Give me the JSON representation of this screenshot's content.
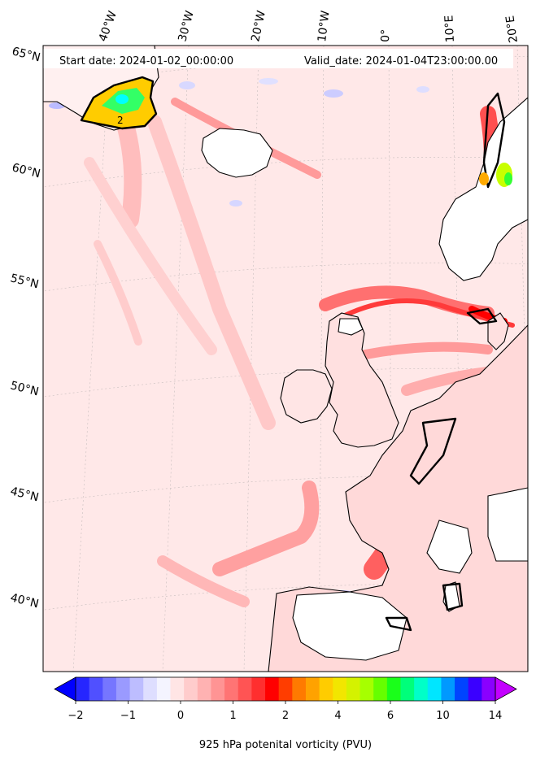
{
  "header": {
    "start_date": "Start date: 2024-01-02_00:00:00",
    "valid_date": "Valid_date: 2024-01-04T23:00:00.00"
  },
  "lon_labels": [
    "40°W",
    "30°W",
    "20°W",
    "10°W",
    "0°",
    "10°E",
    "20°E"
  ],
  "lat_labels": [
    "65°N",
    "60°N",
    "55°N",
    "50°N",
    "45°N",
    "40°N"
  ],
  "contour_label": "2",
  "colorbar": {
    "title": "925 hPa potenital vorticity (PVU)",
    "ticks": [
      "−2",
      "−1",
      "0",
      "1",
      "2",
      "4",
      "6",
      "10",
      "14"
    ],
    "colors": [
      "#0000ff",
      "#2626ff",
      "#5050ff",
      "#7676ff",
      "#9a9aff",
      "#bdbdff",
      "#dedeff",
      "#f4f4ff",
      "#ffe5e5",
      "#ffcccc",
      "#ffb2b2",
      "#ff9494",
      "#ff7474",
      "#ff5454",
      "#ff2f2f",
      "#ff0000",
      "#ff3d00",
      "#ff7a00",
      "#ffa200",
      "#ffcc00",
      "#f2e600",
      "#d4f200",
      "#a6ff00",
      "#66ff00",
      "#1aff1a",
      "#00ff7a",
      "#00ffc8",
      "#00e6ff",
      "#0099ff",
      "#0044ff",
      "#3a00ff",
      "#8a00ff",
      "#c300ff"
    ]
  },
  "style": {
    "ocean_fill": "#ffe8e8",
    "land_fill": "#ffffff",
    "coast_color": "#000000",
    "contour_color": "#000000"
  }
}
